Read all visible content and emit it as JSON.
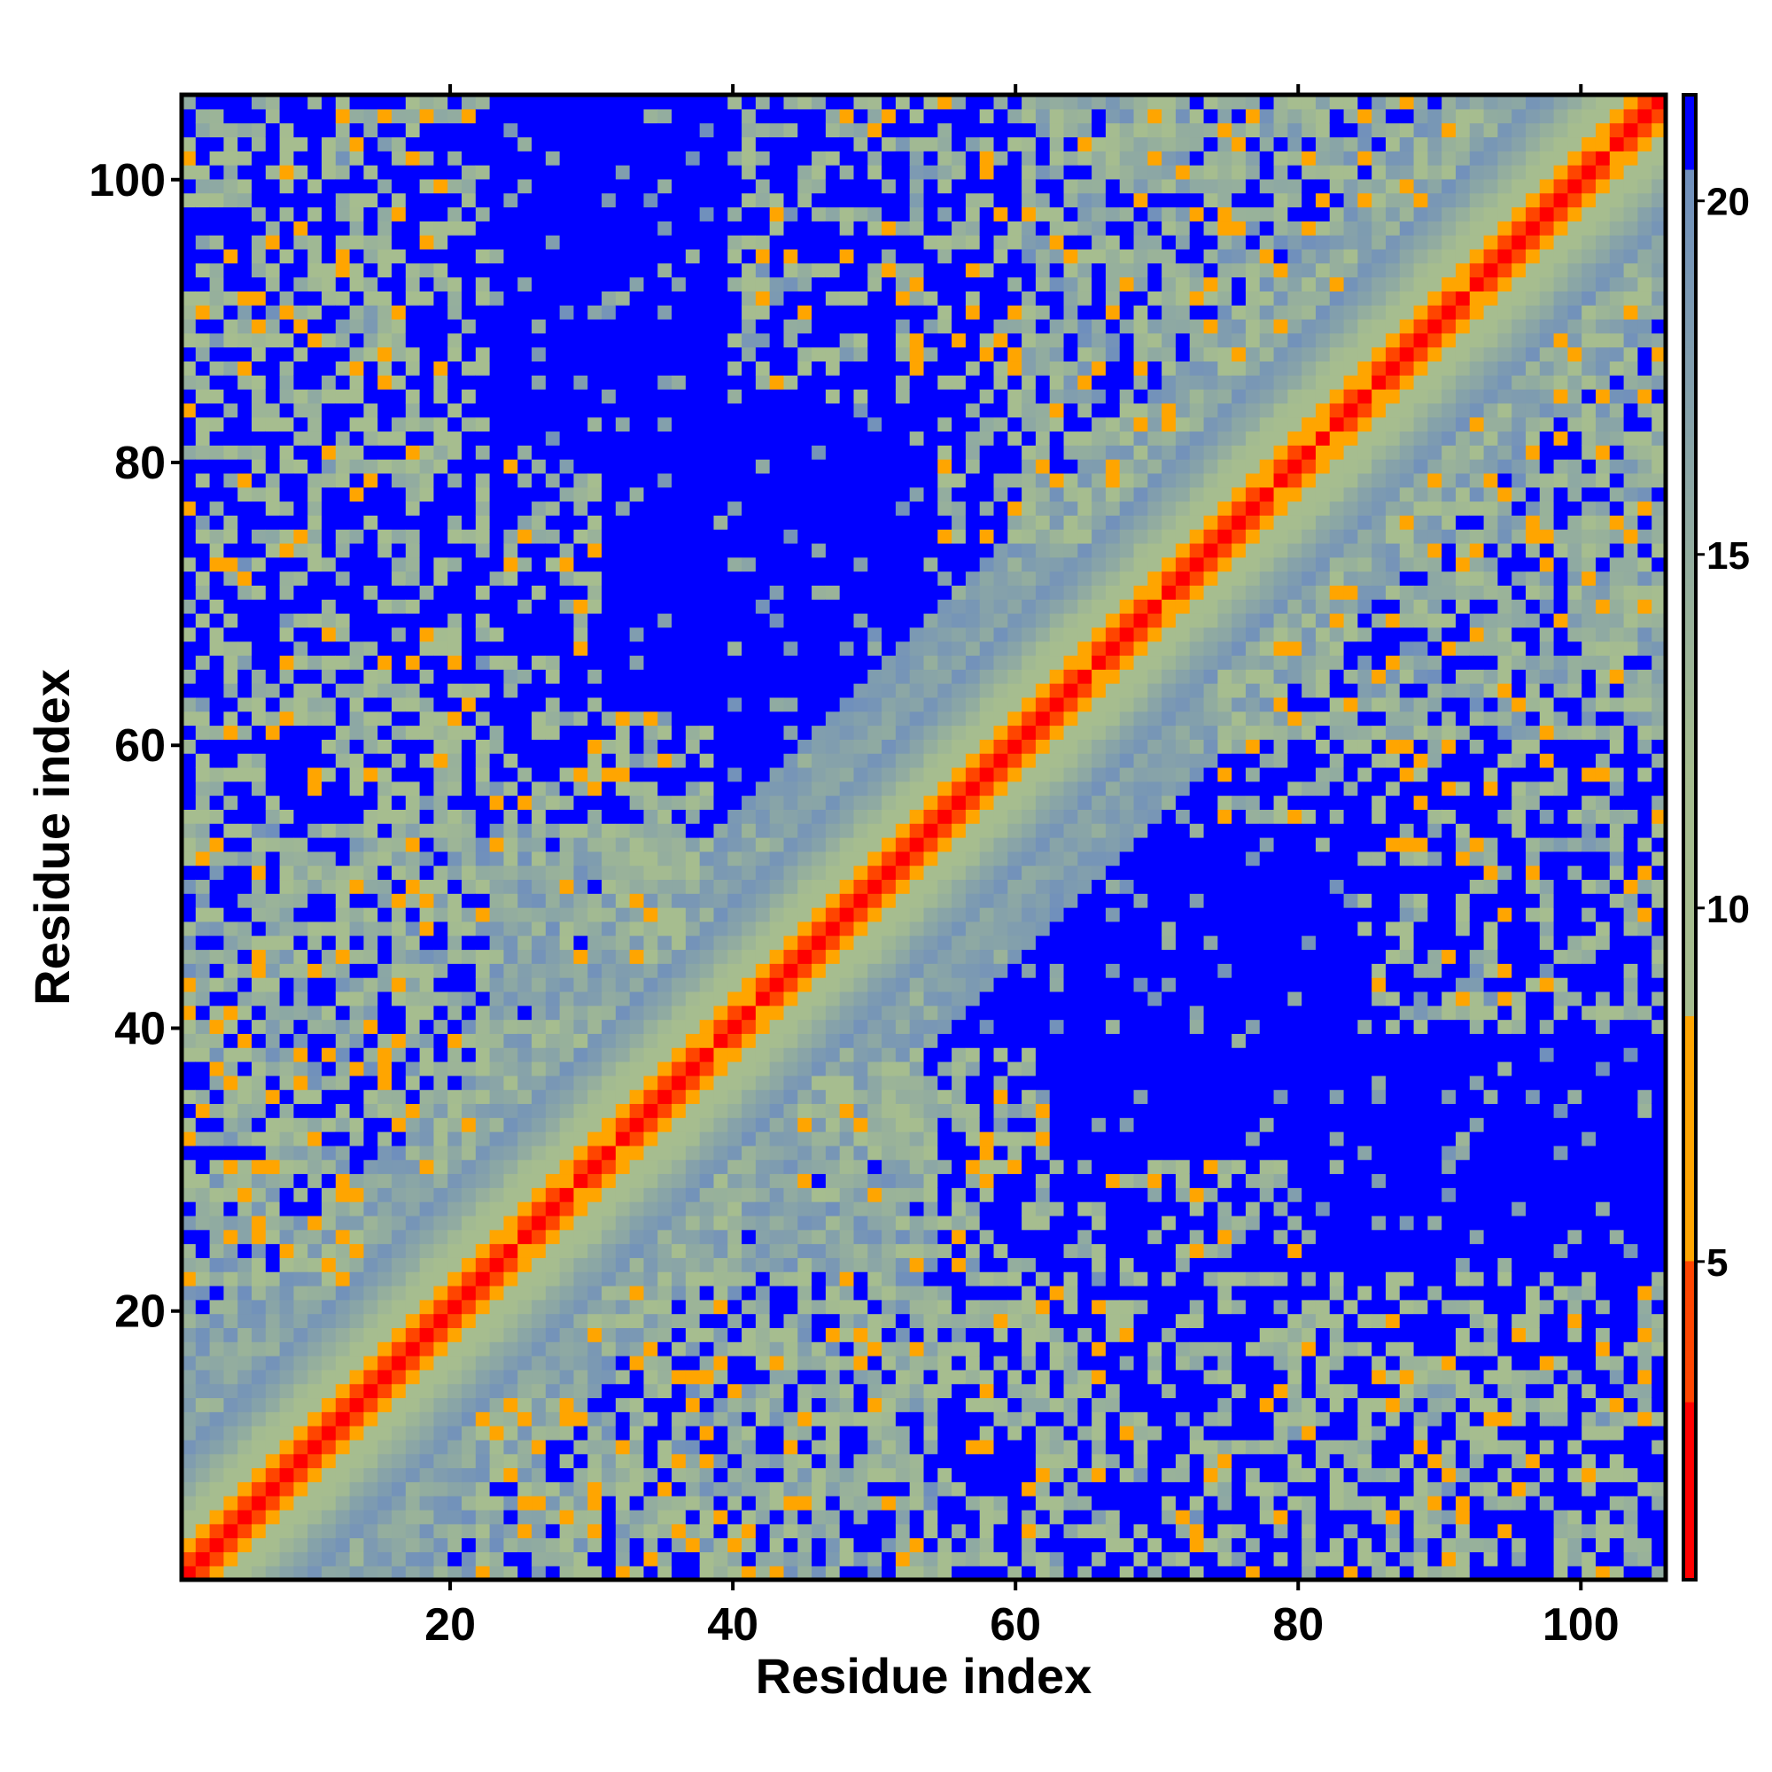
{
  "chart_data": {
    "type": "heatmap",
    "title": "",
    "xlabel": "Residue index",
    "ylabel": "Residue index",
    "xlim": [
      1,
      106
    ],
    "ylim": [
      1,
      106
    ],
    "x_ticks": [
      20,
      40,
      60,
      80,
      100
    ],
    "y_ticks": [
      20,
      40,
      60,
      80,
      100
    ],
    "colorbar": {
      "ticks": [
        5,
        10,
        15,
        20
      ],
      "range": [
        0.5,
        21.5
      ],
      "colors": {
        "near": "#ff0000",
        "mid_near": "#ff4500",
        "mid": "#ffa500",
        "far_low": "#a6bd8f",
        "far_high": "#6f8fbd",
        "max": "#0000ff"
      }
    },
    "matrix_description": "symmetric pairwise distance map of a 106-residue chain; values capped at 21",
    "diagonal_value": 1.5,
    "near_diagonal_values": [
      1.5,
      4.5,
      7,
      9.5,
      11,
      13,
      15,
      16.5,
      18,
      19.5
    ],
    "contact_clusters": [
      {
        "x_range": [
          1,
          22
        ],
        "y_range": [
          22,
          106
        ],
        "level": "high"
      },
      {
        "x_range": [
          22,
          38
        ],
        "y_range": [
          45,
          62
        ],
        "level": "medium"
      },
      {
        "x_range": [
          40,
          70
        ],
        "y_range": [
          85,
          106
        ],
        "level": "medium"
      },
      {
        "x_range": [
          75,
          106
        ],
        "y_range": [
          55,
          106
        ],
        "level": "high"
      },
      {
        "x_range": [
          50,
          80
        ],
        "y_range": [
          10,
          30
        ],
        "level": "medium"
      },
      {
        "x_range": [
          28,
          40
        ],
        "y_range": [
          20,
          33
        ],
        "level": "medium"
      }
    ],
    "far_blocks": [
      {
        "x_range": [
          20,
          60
        ],
        "y_range": [
          55,
          106
        ]
      },
      {
        "x_range": [
          55,
          106
        ],
        "y_range": [
          1,
          50
        ]
      },
      {
        "x_range": [
          1,
          18
        ],
        "y_range": [
          55,
          106
        ]
      }
    ]
  }
}
